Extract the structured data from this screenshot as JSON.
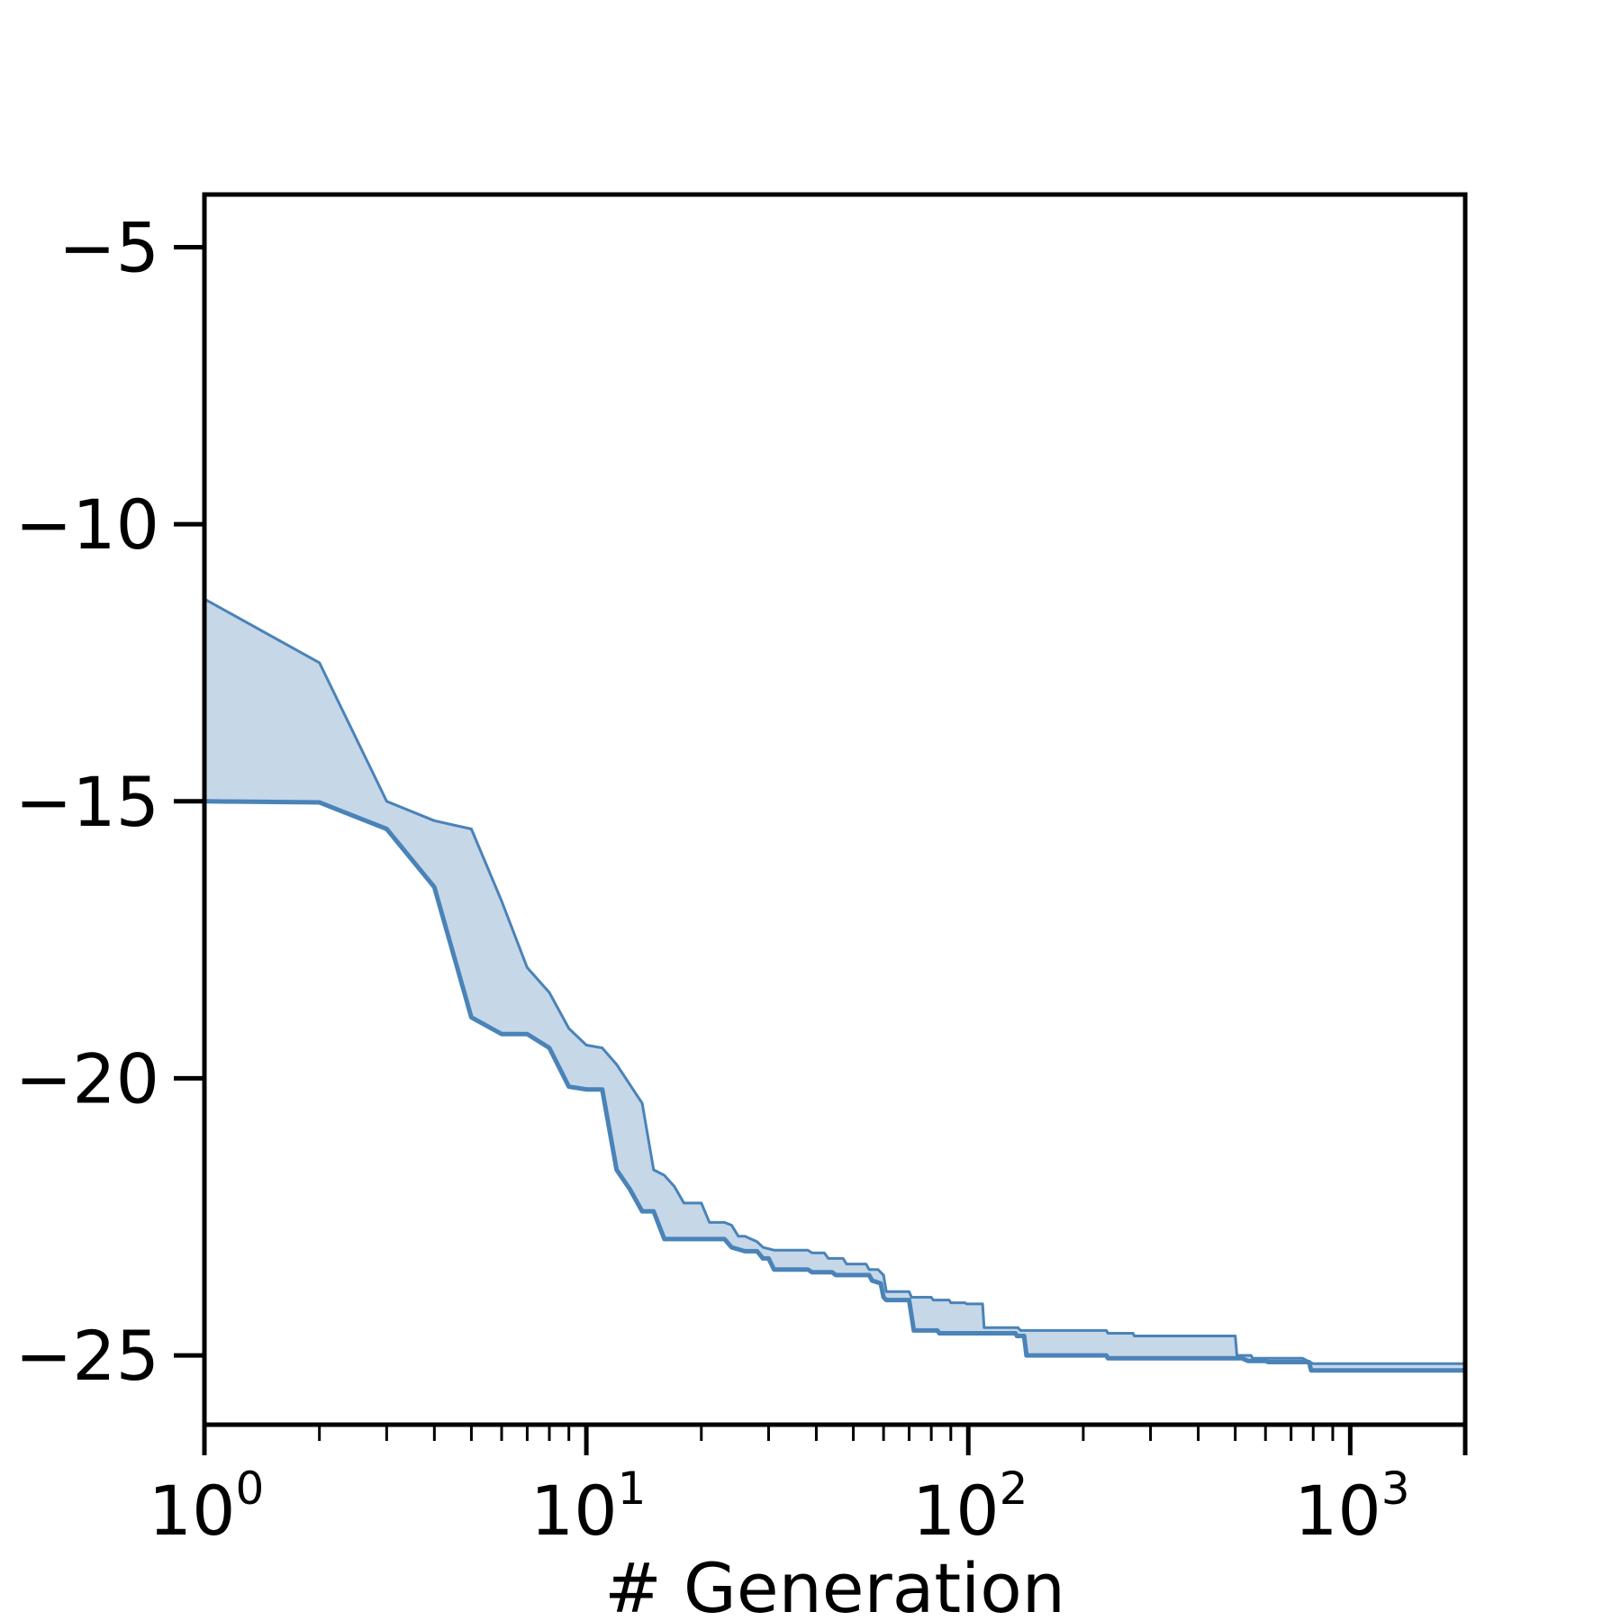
{
  "chart_data": {
    "type": "area",
    "title": "",
    "xlabel": "# Generation",
    "ylabel": "",
    "x_scale": "log",
    "xlim": [
      1,
      2000
    ],
    "ylim": [
      -26.25,
      -4.05
    ],
    "grid": false,
    "x_ticks": [
      {
        "base": "10",
        "exp": "0",
        "value": 1
      },
      {
        "base": "10",
        "exp": "1",
        "value": 10
      },
      {
        "base": "10",
        "exp": "2",
        "value": 100
      },
      {
        "base": "10",
        "exp": "3",
        "value": 1000
      }
    ],
    "y_ticks": [
      {
        "label": "−5",
        "value": -5
      },
      {
        "label": "−10",
        "value": -10
      },
      {
        "label": "−15",
        "value": -15
      },
      {
        "label": "−20",
        "value": -20
      },
      {
        "label": "−25",
        "value": -25
      }
    ],
    "series_color": "#4a83b8",
    "fill_color": "#c6d7e8",
    "series": [
      {
        "role": "upper",
        "points": [
          [
            1,
            -11.35
          ],
          [
            2,
            -12.5
          ],
          [
            3,
            -15.0
          ],
          [
            4,
            -15.35
          ],
          [
            5,
            -15.5
          ],
          [
            6,
            -16.8
          ],
          [
            7,
            -18.0
          ],
          [
            8,
            -18.45
          ],
          [
            9,
            -19.1
          ],
          [
            10,
            -19.4
          ],
          [
            11,
            -19.45
          ],
          [
            12,
            -19.75
          ],
          [
            14,
            -20.45
          ],
          [
            15,
            -21.65
          ],
          [
            16,
            -21.75
          ],
          [
            17,
            -21.95
          ],
          [
            18,
            -22.25
          ],
          [
            20,
            -22.25
          ],
          [
            21,
            -22.6
          ],
          [
            23,
            -22.6
          ],
          [
            24,
            -22.65
          ],
          [
            25,
            -22.85
          ],
          [
            26,
            -22.85
          ],
          [
            28,
            -22.95
          ],
          [
            29,
            -23.05
          ],
          [
            31,
            -23.1
          ],
          [
            38,
            -23.1
          ],
          [
            39,
            -23.15
          ],
          [
            42,
            -23.15
          ],
          [
            43,
            -23.25
          ],
          [
            47,
            -23.25
          ],
          [
            48,
            -23.35
          ],
          [
            54,
            -23.35
          ],
          [
            55,
            -23.45
          ],
          [
            58,
            -23.45
          ],
          [
            60,
            -23.55
          ],
          [
            61,
            -23.85
          ],
          [
            70,
            -23.85
          ],
          [
            71,
            -23.95
          ],
          [
            80,
            -23.95
          ],
          [
            81,
            -24.0
          ],
          [
            89,
            -24.0
          ],
          [
            90,
            -24.05
          ],
          [
            98,
            -24.05
          ],
          [
            99,
            -24.07
          ],
          [
            109,
            -24.07
          ],
          [
            110,
            -24.5
          ],
          [
            135,
            -24.5
          ],
          [
            137,
            -24.55
          ],
          [
            230,
            -24.55
          ],
          [
            232,
            -24.6
          ],
          [
            270,
            -24.6
          ],
          [
            272,
            -24.65
          ],
          [
            500,
            -24.65
          ],
          [
            505,
            -25.0
          ],
          [
            550,
            -25.0
          ],
          [
            555,
            -25.05
          ],
          [
            750,
            -25.05
          ],
          [
            800,
            -25.15
          ],
          [
            2000,
            -25.15
          ]
        ]
      },
      {
        "role": "lower",
        "points": [
          [
            1,
            -15.0
          ],
          [
            2,
            -15.02
          ],
          [
            3,
            -15.5
          ],
          [
            4,
            -16.55
          ],
          [
            5,
            -18.9
          ],
          [
            6,
            -19.2
          ],
          [
            7,
            -19.2
          ],
          [
            8,
            -19.45
          ],
          [
            9,
            -20.15
          ],
          [
            10,
            -20.2
          ],
          [
            11,
            -20.2
          ],
          [
            12,
            -21.65
          ],
          [
            13,
            -22.0
          ],
          [
            14,
            -22.4
          ],
          [
            15,
            -22.4
          ],
          [
            16,
            -22.9
          ],
          [
            23,
            -22.9
          ],
          [
            24,
            -23.05
          ],
          [
            26,
            -23.12
          ],
          [
            28,
            -23.12
          ],
          [
            29,
            -23.25
          ],
          [
            30,
            -23.25
          ],
          [
            31,
            -23.45
          ],
          [
            38,
            -23.45
          ],
          [
            39,
            -23.5
          ],
          [
            44,
            -23.5
          ],
          [
            45,
            -23.55
          ],
          [
            55,
            -23.55
          ],
          [
            56,
            -23.65
          ],
          [
            59,
            -23.7
          ],
          [
            60,
            -23.95
          ],
          [
            61,
            -24.0
          ],
          [
            70,
            -24.0
          ],
          [
            72,
            -24.55
          ],
          [
            83,
            -24.55
          ],
          [
            84,
            -24.6
          ],
          [
            133,
            -24.6
          ],
          [
            134,
            -24.65
          ],
          [
            140,
            -24.65
          ],
          [
            142,
            -25.0
          ],
          [
            230,
            -25.0
          ],
          [
            232,
            -25.05
          ],
          [
            520,
            -25.05
          ],
          [
            540,
            -25.1
          ],
          [
            600,
            -25.1
          ],
          [
            610,
            -25.12
          ],
          [
            780,
            -25.12
          ],
          [
            790,
            -25.27
          ],
          [
            2000,
            -25.27
          ]
        ]
      }
    ]
  }
}
